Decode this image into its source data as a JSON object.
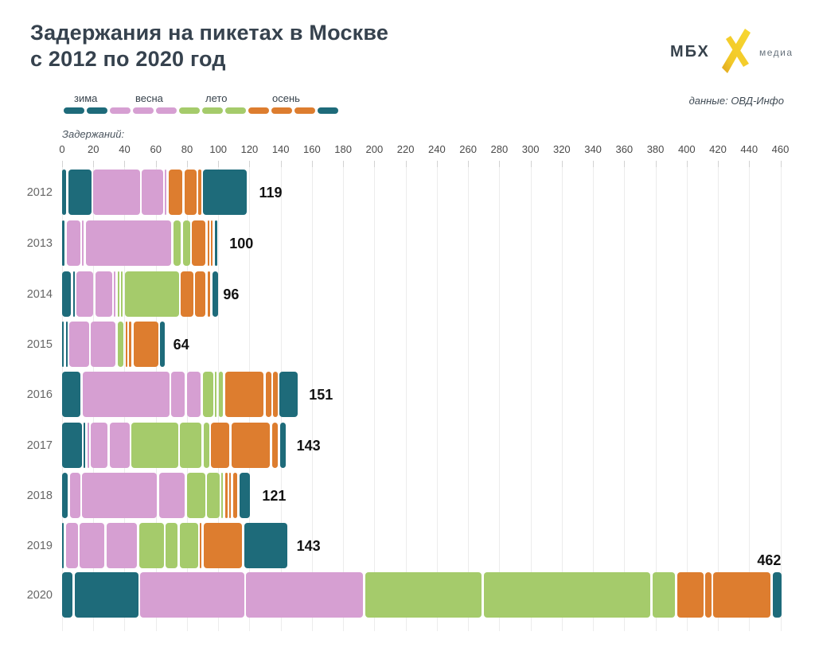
{
  "header": {
    "title_line1": "Задержания на пикетах в Москве",
    "title_line2": "с 2012 по 2020 год",
    "logo": {
      "text": "МБХ",
      "suffix": "медиа"
    },
    "source": "данные: ОВД-Инфо"
  },
  "legend": {
    "items": [
      {
        "label": "зима",
        "season": "winter"
      },
      {
        "label": "весна",
        "season": "spring"
      },
      {
        "label": "лето",
        "season": "summer"
      },
      {
        "label": "осень",
        "season": "autumn"
      }
    ]
  },
  "axis_caption": "Задержаний:",
  "chart_data": {
    "type": "bar",
    "orientation": "horizontal",
    "stacked": true,
    "title": "Задержания на пикетах в Москве с 2012 по 2020 год",
    "xlabel": "Задержаний:",
    "ylabel": "",
    "xlim": [
      0,
      460
    ],
    "tick_step": 20,
    "grid": true,
    "legend_position": "top",
    "season_colors": {
      "winter": "#1e6b7a",
      "spring": "#d69fd2",
      "summer": "#a5cb6b",
      "autumn": "#dd7d2f"
    },
    "month_season": [
      "winter",
      "winter",
      "spring",
      "spring",
      "spring",
      "summer",
      "summer",
      "summer",
      "autumn",
      "autumn",
      "autumn",
      "winter"
    ],
    "categories": [
      "2012",
      "2013",
      "2014",
      "2015",
      "2016",
      "2017",
      "2018",
      "2019",
      "2020"
    ],
    "totals": [
      119,
      100,
      96,
      64,
      151,
      143,
      121,
      143,
      462
    ],
    "monthly_values": [
      [
        4,
        16,
        31,
        15,
        2,
        0,
        0,
        0,
        10,
        9,
        3,
        29
      ],
      [
        3,
        0,
        10,
        2,
        56,
        6,
        6,
        0,
        10,
        2,
        2,
        3
      ],
      [
        7,
        1,
        12,
        12,
        1,
        1,
        1,
        36,
        9,
        8,
        3,
        5
      ],
      [
        1,
        1,
        14,
        17,
        0,
        5,
        0,
        0,
        2,
        3,
        17,
        4
      ],
      [
        13,
        0,
        57,
        10,
        10,
        8,
        1,
        4,
        26,
        5,
        4,
        13
      ],
      [
        14,
        1,
        2,
        12,
        14,
        31,
        15,
        5,
        13,
        26,
        5,
        5
      ],
      [
        5,
        0,
        8,
        49,
        18,
        13,
        9,
        2,
        3,
        2,
        4,
        8
      ],
      [
        1,
        0,
        9,
        17,
        21,
        17,
        9,
        13,
        1,
        26,
        0,
        29
      ],
      [
        8,
        42,
        68,
        76,
        0,
        76,
        108,
        16,
        18,
        5,
        38,
        7
      ]
    ]
  }
}
